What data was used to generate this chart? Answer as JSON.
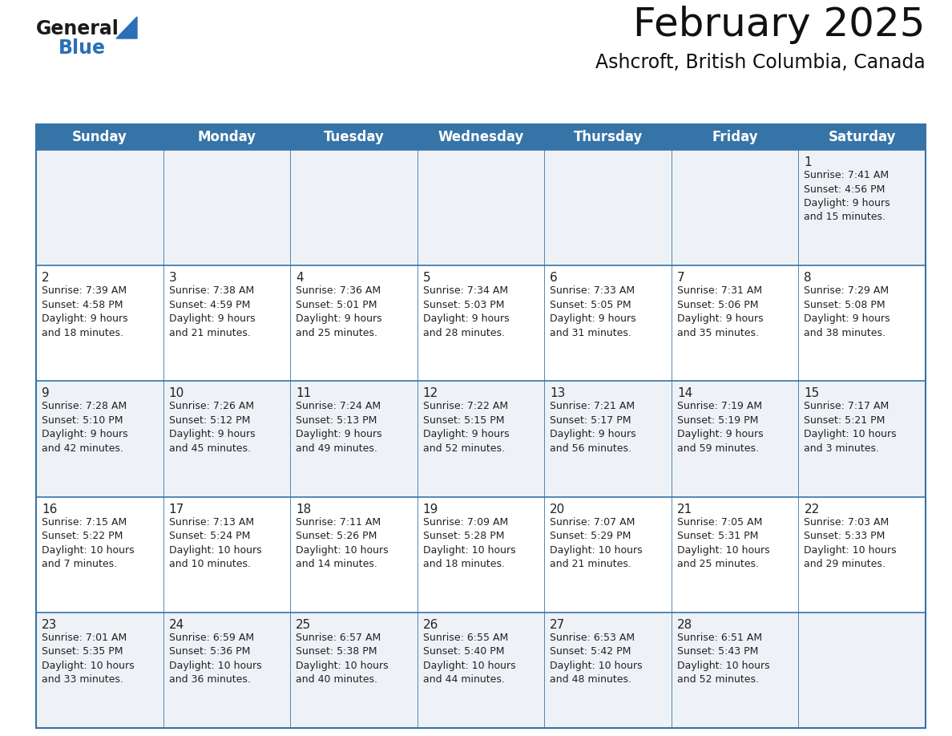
{
  "title": "February 2025",
  "subtitle": "Ashcroft, British Columbia, Canada",
  "header_bg": "#3674A8",
  "header_text_color": "#FFFFFF",
  "row_bg_even": "#FFFFFF",
  "row_bg_odd": "#EEF2F7",
  "border_color_strong": "#3674A8",
  "border_color_cell": "#3674A8",
  "text_color": "#222222",
  "day_headers": [
    "Sunday",
    "Monday",
    "Tuesday",
    "Wednesday",
    "Thursday",
    "Friday",
    "Saturday"
  ],
  "title_fontsize": 36,
  "subtitle_fontsize": 17,
  "header_fontsize": 12,
  "day_num_fontsize": 11,
  "cell_fontsize": 9,
  "logo_general_color": "#1a1a1a",
  "logo_blue_color": "#2970B8",
  "calendar": [
    [
      null,
      null,
      null,
      null,
      null,
      null,
      {
        "day": 1,
        "sunrise": "7:41 AM",
        "sunset": "4:56 PM",
        "daylight": "9 hours\nand 15 minutes."
      }
    ],
    [
      {
        "day": 2,
        "sunrise": "7:39 AM",
        "sunset": "4:58 PM",
        "daylight": "9 hours\nand 18 minutes."
      },
      {
        "day": 3,
        "sunrise": "7:38 AM",
        "sunset": "4:59 PM",
        "daylight": "9 hours\nand 21 minutes."
      },
      {
        "day": 4,
        "sunrise": "7:36 AM",
        "sunset": "5:01 PM",
        "daylight": "9 hours\nand 25 minutes."
      },
      {
        "day": 5,
        "sunrise": "7:34 AM",
        "sunset": "5:03 PM",
        "daylight": "9 hours\nand 28 minutes."
      },
      {
        "day": 6,
        "sunrise": "7:33 AM",
        "sunset": "5:05 PM",
        "daylight": "9 hours\nand 31 minutes."
      },
      {
        "day": 7,
        "sunrise": "7:31 AM",
        "sunset": "5:06 PM",
        "daylight": "9 hours\nand 35 minutes."
      },
      {
        "day": 8,
        "sunrise": "7:29 AM",
        "sunset": "5:08 PM",
        "daylight": "9 hours\nand 38 minutes."
      }
    ],
    [
      {
        "day": 9,
        "sunrise": "7:28 AM",
        "sunset": "5:10 PM",
        "daylight": "9 hours\nand 42 minutes."
      },
      {
        "day": 10,
        "sunrise": "7:26 AM",
        "sunset": "5:12 PM",
        "daylight": "9 hours\nand 45 minutes."
      },
      {
        "day": 11,
        "sunrise": "7:24 AM",
        "sunset": "5:13 PM",
        "daylight": "9 hours\nand 49 minutes."
      },
      {
        "day": 12,
        "sunrise": "7:22 AM",
        "sunset": "5:15 PM",
        "daylight": "9 hours\nand 52 minutes."
      },
      {
        "day": 13,
        "sunrise": "7:21 AM",
        "sunset": "5:17 PM",
        "daylight": "9 hours\nand 56 minutes."
      },
      {
        "day": 14,
        "sunrise": "7:19 AM",
        "sunset": "5:19 PM",
        "daylight": "9 hours\nand 59 minutes."
      },
      {
        "day": 15,
        "sunrise": "7:17 AM",
        "sunset": "5:21 PM",
        "daylight": "10 hours\nand 3 minutes."
      }
    ],
    [
      {
        "day": 16,
        "sunrise": "7:15 AM",
        "sunset": "5:22 PM",
        "daylight": "10 hours\nand 7 minutes."
      },
      {
        "day": 17,
        "sunrise": "7:13 AM",
        "sunset": "5:24 PM",
        "daylight": "10 hours\nand 10 minutes."
      },
      {
        "day": 18,
        "sunrise": "7:11 AM",
        "sunset": "5:26 PM",
        "daylight": "10 hours\nand 14 minutes."
      },
      {
        "day": 19,
        "sunrise": "7:09 AM",
        "sunset": "5:28 PM",
        "daylight": "10 hours\nand 18 minutes."
      },
      {
        "day": 20,
        "sunrise": "7:07 AM",
        "sunset": "5:29 PM",
        "daylight": "10 hours\nand 21 minutes."
      },
      {
        "day": 21,
        "sunrise": "7:05 AM",
        "sunset": "5:31 PM",
        "daylight": "10 hours\nand 25 minutes."
      },
      {
        "day": 22,
        "sunrise": "7:03 AM",
        "sunset": "5:33 PM",
        "daylight": "10 hours\nand 29 minutes."
      }
    ],
    [
      {
        "day": 23,
        "sunrise": "7:01 AM",
        "sunset": "5:35 PM",
        "daylight": "10 hours\nand 33 minutes."
      },
      {
        "day": 24,
        "sunrise": "6:59 AM",
        "sunset": "5:36 PM",
        "daylight": "10 hours\nand 36 minutes."
      },
      {
        "day": 25,
        "sunrise": "6:57 AM",
        "sunset": "5:38 PM",
        "daylight": "10 hours\nand 40 minutes."
      },
      {
        "day": 26,
        "sunrise": "6:55 AM",
        "sunset": "5:40 PM",
        "daylight": "10 hours\nand 44 minutes."
      },
      {
        "day": 27,
        "sunrise": "6:53 AM",
        "sunset": "5:42 PM",
        "daylight": "10 hours\nand 48 minutes."
      },
      {
        "day": 28,
        "sunrise": "6:51 AM",
        "sunset": "5:43 PM",
        "daylight": "10 hours\nand 52 minutes."
      },
      null
    ]
  ]
}
